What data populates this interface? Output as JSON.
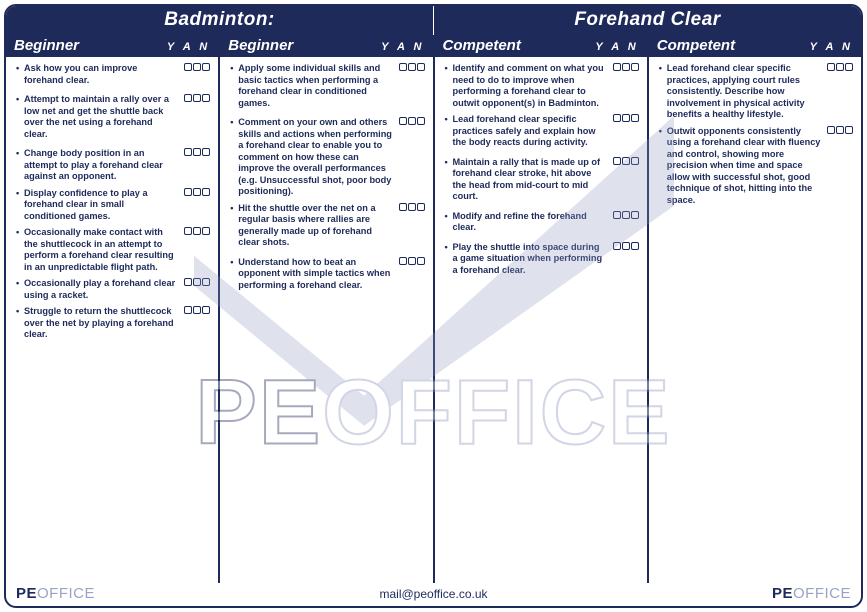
{
  "header": {
    "left": "Badminton:",
    "right": "Forehand Clear"
  },
  "yan_label": "Y A N",
  "columns": [
    {
      "title": "Beginner",
      "items": [
        {
          "text": "Ask how you can improve forehand clear.",
          "boxes": true,
          "gap": false
        },
        {
          "text": "Attempt to maintain a rally over a low net and get the shuttle back over the net using a forehand clear.",
          "boxes": true,
          "gap": true
        },
        {
          "text": "Change body position in an attempt to play a forehand clear against an opponent.",
          "boxes": true,
          "gap": true
        },
        {
          "text": "Display confidence to play a forehand clear in small conditioned games.",
          "boxes": true,
          "gap": false
        },
        {
          "text": "Occasionally make contact with the shuttlecock in an attempt to perform a forehand clear resulting in an unpredictable flight path.",
          "boxes": true,
          "gap": false
        },
        {
          "text": "Occasionally play a forehand clear using a racket.",
          "boxes": true,
          "gap": false
        },
        {
          "text": "Struggle to return the shuttlecock over the net by playing a forehand clear.",
          "boxes": true,
          "gap": false
        }
      ]
    },
    {
      "title": "Beginner",
      "items": [
        {
          "text": "Apply some individual skills and basic tactics when performing a forehand clear in conditioned games.",
          "boxes": true,
          "gap": false
        },
        {
          "text": "Comment on your own and others skills and actions when performing a forehand clear to enable you to comment on how these can improve the overall performances (e.g. Unsuccessful shot, poor body positioning).",
          "boxes": true,
          "gap": true
        },
        {
          "text": "Hit the shuttle over the net on a regular basis where rallies are generally made up of forehand clear shots.",
          "boxes": true,
          "gap": false
        },
        {
          "text": "Understand how to beat an opponent with simple tactics when performing a forehand clear.",
          "boxes": true,
          "gap": true
        }
      ]
    },
    {
      "title": "Competent",
      "items": [
        {
          "text": "Identify and comment on what you need to do to improve when performing a forehand clear to outwit opponent(s) in Badminton.",
          "boxes": true,
          "gap": false
        },
        {
          "text": "Lead forehand clear specific practices safely and explain how the body reacts during activity.",
          "boxes": true,
          "gap": false
        },
        {
          "text": "Maintain a rally that is made up of forehand clear stroke, hit above the head from mid-court to mid court.",
          "boxes": true,
          "gap": true
        },
        {
          "text": "Modify and refine the forehand clear.",
          "boxes": true,
          "gap": true
        },
        {
          "text": "Play the shuttle into space during a game situation when performing a forehand clear.",
          "boxes": true,
          "gap": true
        }
      ]
    },
    {
      "title": "Competent",
      "items": [
        {
          "text": "Lead forehand clear specific practices, applying court rules consistently. Describe how involvement in physical activity benefits a healthy lifestyle.",
          "boxes": true,
          "gap": false
        },
        {
          "text": "Outwit opponents consistently using a forehand clear with fluency and control, showing more precision when time and space allow with successful shot, good technique of shot, hitting into the space.",
          "boxes": true,
          "gap": false
        }
      ]
    }
  ],
  "footer": {
    "logo_pe": "PE",
    "logo_office": "OFFICE",
    "email": "mail@peoffice.co.uk"
  },
  "watermark": {
    "pe": "PE",
    "office": "OFFICE"
  },
  "colors": {
    "navy": "#1e2a5a",
    "muted": "#9aa3c4",
    "wm_stroke": "#8f99bf"
  }
}
